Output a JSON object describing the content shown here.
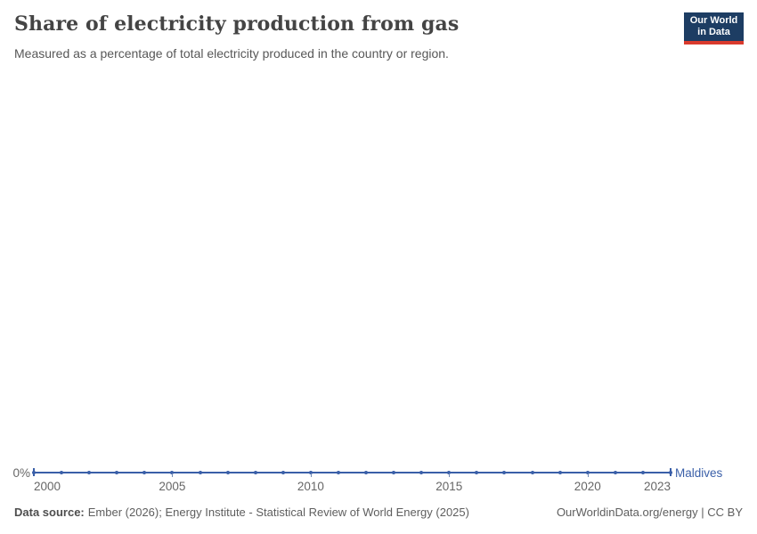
{
  "header": {
    "title": "Share of electricity production from gas",
    "subtitle": "Measured as a percentage of total electricity produced in the country or region.",
    "logo": {
      "line1": "Our World",
      "line2": "in Data"
    }
  },
  "chart_data": {
    "type": "line",
    "title": "Share of electricity production from gas",
    "subtitle": "Measured as a percentage of total electricity produced in the country or region.",
    "xlim": [
      2000,
      2023
    ],
    "x_ticks": [
      2000,
      2005,
      2010,
      2015,
      2020,
      2023
    ],
    "y_axis": {
      "zero_label": "0%"
    },
    "grid": false,
    "legend_position": "end-of-line",
    "series": [
      {
        "name": "Maldives",
        "color": "#3a5fa8",
        "unit": "%",
        "x": [
          2000,
          2001,
          2002,
          2003,
          2004,
          2005,
          2006,
          2007,
          2008,
          2009,
          2010,
          2011,
          2012,
          2013,
          2014,
          2015,
          2016,
          2017,
          2018,
          2019,
          2020,
          2021,
          2022,
          2023
        ],
        "values": [
          0,
          0,
          0,
          0,
          0,
          0,
          0,
          0,
          0,
          0,
          0,
          0,
          0,
          0,
          0,
          0,
          0,
          0,
          0,
          0,
          0,
          0,
          0,
          0
        ]
      }
    ]
  },
  "footer": {
    "source_label": "Data source:",
    "source_text": "Ember (2026); Energy Institute - Statistical Review of World Energy (2025)",
    "credit": "OurWorldinData.org/energy | CC BY"
  }
}
